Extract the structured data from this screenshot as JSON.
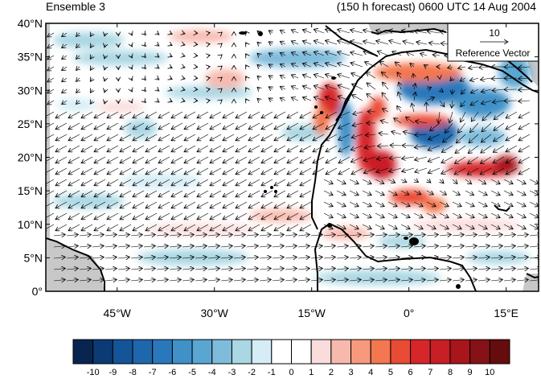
{
  "title_left": "Ensemble 3",
  "title_right": "(150 h forecast) 0600 UTC 14 Aug 2004",
  "map": {
    "lon_range": [
      -56,
      20
    ],
    "lat_range": [
      0,
      40
    ],
    "lat_labels": [
      "0°",
      "5°N",
      "10°N",
      "15°N",
      "20°N",
      "25°N",
      "30°N",
      "35°N",
      "40°N"
    ],
    "lon_labels": [
      "45°W",
      "30°W",
      "15°W",
      "0°",
      "15°E"
    ],
    "land_mask_color": "#c8c8c8",
    "coastline_color": "#000000"
  },
  "reference_vector": {
    "magnitude_label": "10",
    "caption": "Reference Vector"
  },
  "colorbar": {
    "colors": [
      "#08254f",
      "#0b3a75",
      "#14559a",
      "#1f67ad",
      "#2a78bb",
      "#3f91c8",
      "#5aa6d2",
      "#7fbcdb",
      "#a9d7e3",
      "#d6edf7",
      "#ffffff",
      "#ffffff",
      "#fbdcdc",
      "#f8b9ad",
      "#f7997d",
      "#f3774f",
      "#ea4b35",
      "#d6262a",
      "#c81e25",
      "#a8151b",
      "#861217",
      "#650c0d"
    ],
    "labels": [
      "-10",
      "-9",
      "-8",
      "-7",
      "-6",
      "-5",
      "-4",
      "-3",
      "-2",
      "-1",
      "0",
      "1",
      "2",
      "3",
      "4",
      "5",
      "6",
      "7",
      "8",
      "9",
      "10"
    ]
  }
}
